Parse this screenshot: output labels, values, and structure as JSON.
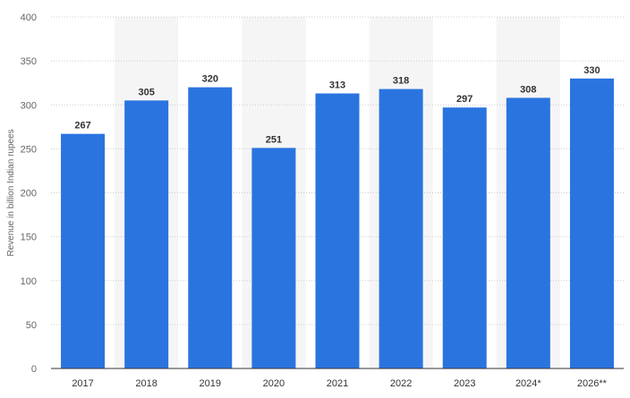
{
  "chart_data": {
    "type": "bar",
    "categories": [
      "2017",
      "2018",
      "2019",
      "2020",
      "2021",
      "2022",
      "2023",
      "2024*",
      "2026**"
    ],
    "values": [
      267,
      305,
      320,
      251,
      313,
      318,
      297,
      308,
      330
    ],
    "title": "",
    "xlabel": "",
    "ylabel": "Revenue in billion Indian rupees",
    "ylim": [
      0,
      400
    ],
    "yticks": [
      0,
      50,
      100,
      150,
      200,
      250,
      300,
      350,
      400
    ],
    "grid": true,
    "legend": "none",
    "bar_color": "#2a74e0",
    "band_color": "#f5f5f5",
    "grid_color": "#cccccc"
  }
}
